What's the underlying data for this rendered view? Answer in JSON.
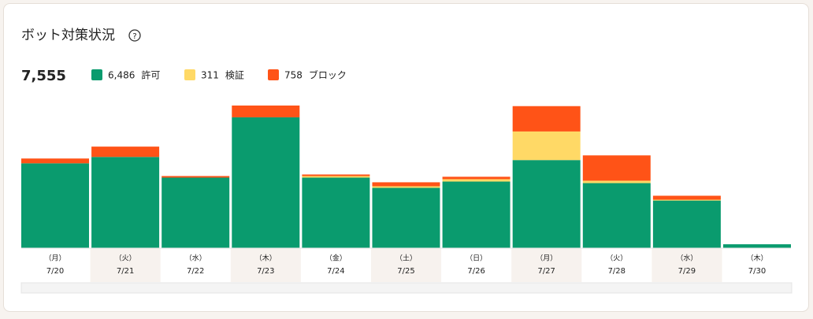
{
  "chart_data": {
    "type": "stacked-bar",
    "title": "ボット対策状況",
    "total": {
      "value": 7555,
      "label": "7,555"
    },
    "categories": [
      "7/20",
      "7/21",
      "7/22",
      "7/23",
      "7/24",
      "7/25",
      "7/26",
      "7/27",
      "7/28",
      "7/29",
      "7/30"
    ],
    "weekdays": [
      "（月）",
      "（火）",
      "（水）",
      "（木）",
      "（金）",
      "（土）",
      "（日）",
      "（月）",
      "（火）",
      "（水）",
      "（木）"
    ],
    "series": [
      {
        "name": "許可",
        "color": "#0a9b6e",
        "sum": {
          "value": 6486,
          "label": "6,486"
        },
        "values": [
          706,
          759,
          587,
          1089,
          587,
          502,
          554,
          733,
          541,
          396,
          32
        ]
      },
      {
        "name": "検証",
        "color": "#ffd966",
        "sum": {
          "value": 311,
          "label": "311"
        },
        "values": [
          0,
          0,
          0,
          0,
          13,
          13,
          20,
          238,
          20,
          7,
          0
        ]
      },
      {
        "name": "ブロック",
        "color": "#ff5317",
        "sum": {
          "value": 758,
          "label": "758"
        },
        "values": [
          40,
          86,
          13,
          98,
          13,
          33,
          20,
          211,
          211,
          33,
          0
        ]
      }
    ],
    "ylim": [
      0,
      1200
    ]
  }
}
